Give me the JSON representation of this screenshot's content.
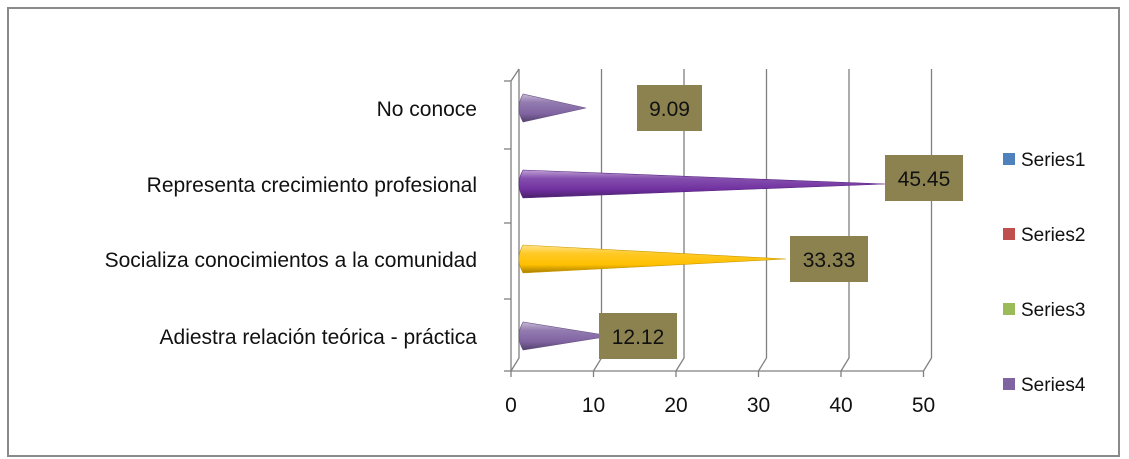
{
  "chart_data": {
    "type": "bar",
    "orientation": "horizontal",
    "categories": [
      "Adiestra relación teórica - práctica",
      "Socializa conocimientos a la comunidad",
      "Representa crecimiento profesional",
      "No conoce"
    ],
    "values": [
      12.12,
      33.33,
      45.45,
      9.09
    ],
    "value_labels": [
      "12.12",
      "33.33",
      "45.45",
      "9.09"
    ],
    "bar_colors": [
      "#8064A2",
      "#FFC000",
      "#7030A0",
      "#8064A2"
    ],
    "xlim": [
      0,
      50
    ],
    "xticks": [
      "0",
      "10",
      "20",
      "30",
      "40",
      "50"
    ],
    "grid": true,
    "legend": {
      "placement": "right",
      "entries": [
        {
          "name": "Series1",
          "color": "#4F81BD"
        },
        {
          "name": "Series2",
          "color": "#C0504D"
        },
        {
          "name": "Series3",
          "color": "#9BBB59"
        },
        {
          "name": "Series4",
          "color": "#8064A2"
        }
      ]
    },
    "data_label_background": "#8B8250"
  }
}
